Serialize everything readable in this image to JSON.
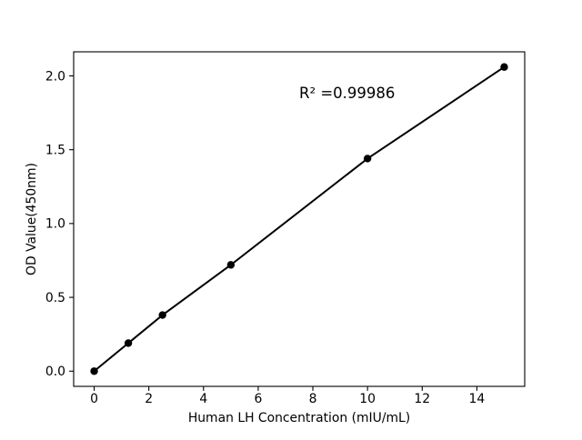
{
  "figure": {
    "background": "#ffffff",
    "foreground": "#000000"
  },
  "chart_data": {
    "type": "line",
    "title": "",
    "xlabel": "Human LH Concentration (mIU/mL)",
    "ylabel": "OD Value(450nm)",
    "series": [
      {
        "name": "standard-curve",
        "x": [
          0,
          1.25,
          2.5,
          5,
          10,
          15
        ],
        "y": [
          0.0,
          0.19,
          0.38,
          0.72,
          1.44,
          2.06
        ],
        "line_color": "#000000",
        "marker": "circle",
        "marker_color": "#000000"
      }
    ],
    "xlim": [
      -0.75,
      15.75
    ],
    "ylim": [
      -0.103,
      2.163
    ],
    "xticks": {
      "values": [
        0,
        2,
        4,
        6,
        8,
        10,
        12,
        14
      ],
      "labels": [
        "0",
        "2",
        "4",
        "6",
        "8",
        "10",
        "12",
        "14"
      ]
    },
    "yticks": {
      "values": [
        0,
        0.5,
        1.0,
        1.5,
        2.0
      ],
      "labels": [
        "0.0",
        "0.5",
        "1.0",
        "1.5",
        "2.0"
      ]
    },
    "grid": false,
    "legend": "none",
    "annotation": {
      "text": "R² =0.99986",
      "x": 7.5,
      "y": 1.85
    }
  }
}
